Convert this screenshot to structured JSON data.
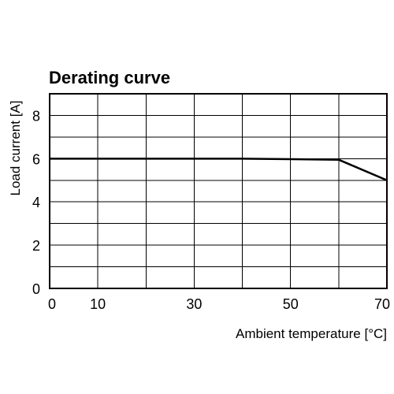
{
  "chart_data": {
    "type": "line",
    "title": "Derating curve",
    "xlabel": "Ambient temperature [°C]",
    "ylabel": "Load current [A]",
    "xlim": [
      0,
      70
    ],
    "ylim": [
      0,
      9
    ],
    "x_ticks": [
      0,
      10,
      30,
      50,
      70
    ],
    "x_grid": [
      0,
      10,
      20,
      30,
      40,
      50,
      60,
      70
    ],
    "y_ticks": [
      0,
      2,
      4,
      6,
      8
    ],
    "y_grid": [
      0,
      1,
      2,
      3,
      4,
      5,
      6,
      7,
      8,
      9
    ],
    "grid": true,
    "series": [
      {
        "x": [
          0,
          40,
          60,
          70
        ],
        "y": [
          6,
          6,
          5.95,
          5
        ]
      }
    ]
  }
}
